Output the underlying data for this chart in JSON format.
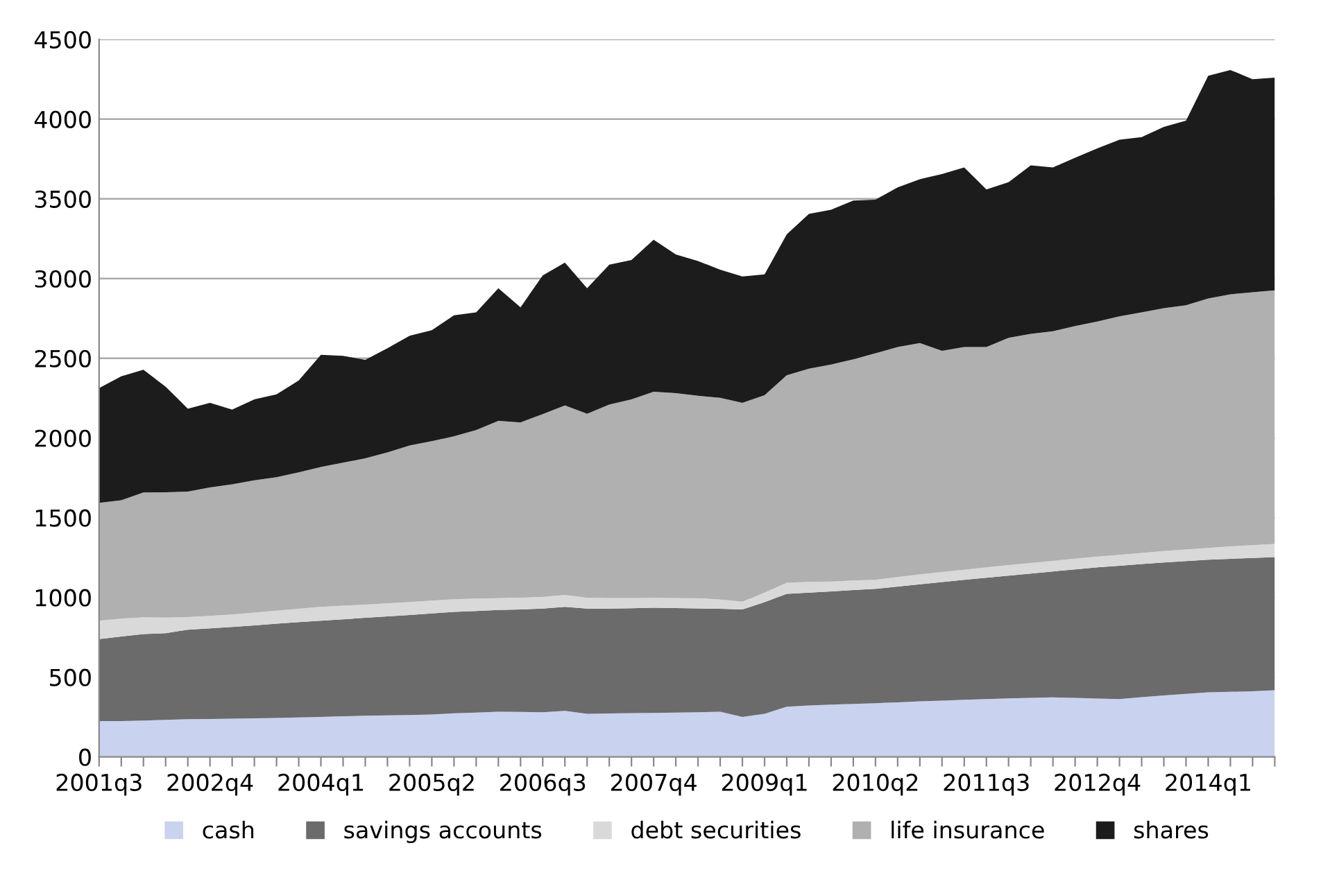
{
  "chart_data": {
    "type": "area",
    "stacked": true,
    "categories": [
      "2001q3",
      null,
      null,
      null,
      null,
      "2002q4",
      null,
      null,
      null,
      null,
      "2004q1",
      null,
      null,
      null,
      null,
      "2005q2",
      null,
      null,
      null,
      null,
      "2006q3",
      null,
      null,
      null,
      null,
      "2007q4",
      null,
      null,
      null,
      null,
      "2009q1",
      null,
      null,
      null,
      null,
      "2010q2",
      null,
      null,
      null,
      null,
      "2011q3",
      null,
      null,
      null,
      null,
      "2012q4",
      null,
      null,
      null,
      null,
      "2014q1",
      null,
      null,
      null
    ],
    "ylim": [
      0,
      4500
    ],
    "yticks": [
      0,
      500,
      1000,
      1500,
      2000,
      2500,
      3000,
      3500,
      4000,
      4500
    ],
    "grid": "y",
    "legend": "bottom",
    "series": [
      {
        "name": "cash",
        "color": "#c9d3f0",
        "values": [
          225,
          225,
          228,
          232,
          236,
          238,
          240,
          242,
          244,
          247,
          251,
          255,
          258,
          260,
          263,
          266,
          273,
          278,
          283,
          282,
          280,
          289,
          270,
          272,
          274,
          276,
          278,
          280,
          283,
          251,
          270,
          315,
          322,
          328,
          332,
          337,
          342,
          348,
          353,
          358,
          363,
          367,
          370,
          373,
          370,
          366,
          363,
          375,
          385,
          395,
          405,
          408,
          412,
          418
        ]
      },
      {
        "name": "savings accounts",
        "color": "#6b6b6b",
        "values": [
          514,
          530,
          542,
          544,
          561,
          568,
          575,
          583,
          591,
          598,
          603,
          608,
          614,
          621,
          627,
          634,
          636,
          637,
          638,
          643,
          650,
          652,
          660,
          658,
          658,
          659,
          655,
          651,
          646,
          674,
          700,
          707,
          708,
          710,
          714,
          717,
          726,
          734,
          743,
          752,
          761,
          770,
          780,
          790,
          806,
          823,
          836,
          834,
          834,
          833,
          832,
          834,
          836,
          835
        ]
      },
      {
        "name": "debt securities",
        "color": "#d9d9d9",
        "values": [
          115,
          112,
          106,
          98,
          80,
          78,
          78,
          80,
          82,
          84,
          87,
          85,
          83,
          82,
          81,
          80,
          80,
          78,
          76,
          75,
          74,
          74,
          70,
          68,
          66,
          64,
          64,
          65,
          58,
          48,
          60,
          70,
          68,
          62,
          60,
          57,
          60,
          62,
          63,
          64,
          65,
          66,
          66,
          66,
          67,
          67,
          68,
          70,
          72,
          73,
          74,
          78,
          80,
          83
        ]
      },
      {
        "name": "life insurance",
        "color": "#b0b0b0",
        "values": [
          739,
          743,
          782,
          786,
          787,
          806,
          817,
          830,
          837,
          856,
          877,
          897,
          918,
          947,
          982,
          1000,
          1022,
          1057,
          1110,
          1098,
          1146,
          1189,
          1152,
          1212,
          1244,
          1291,
          1284,
          1269,
          1265,
          1247,
          1238,
          1301,
          1337,
          1361,
          1387,
          1420,
          1442,
          1452,
          1388,
          1396,
          1381,
          1425,
          1437,
          1440,
          1459,
          1474,
          1496,
          1509,
          1523,
          1532,
          1564,
          1581,
          1586,
          1590
        ]
      },
      {
        "name": "shares",
        "color": "#1c1c1c",
        "values": [
          720,
          777,
          770,
          662,
          520,
          530,
          468,
          507,
          520,
          576,
          704,
          670,
          617,
          653,
          688,
          696,
          758,
          738,
          832,
          722,
          870,
          896,
          787,
          877,
          874,
          954,
          870,
          845,
          803,
          793,
          758,
          884,
          970,
          970,
          996,
          964,
          1002,
          1027,
          1109,
          1127,
          989,
          976,
          1057,
          1028,
          1056,
          1086,
          1108,
          1099,
          1137,
          1157,
          1397,
          1407,
          1336,
          1334
        ]
      }
    ]
  }
}
